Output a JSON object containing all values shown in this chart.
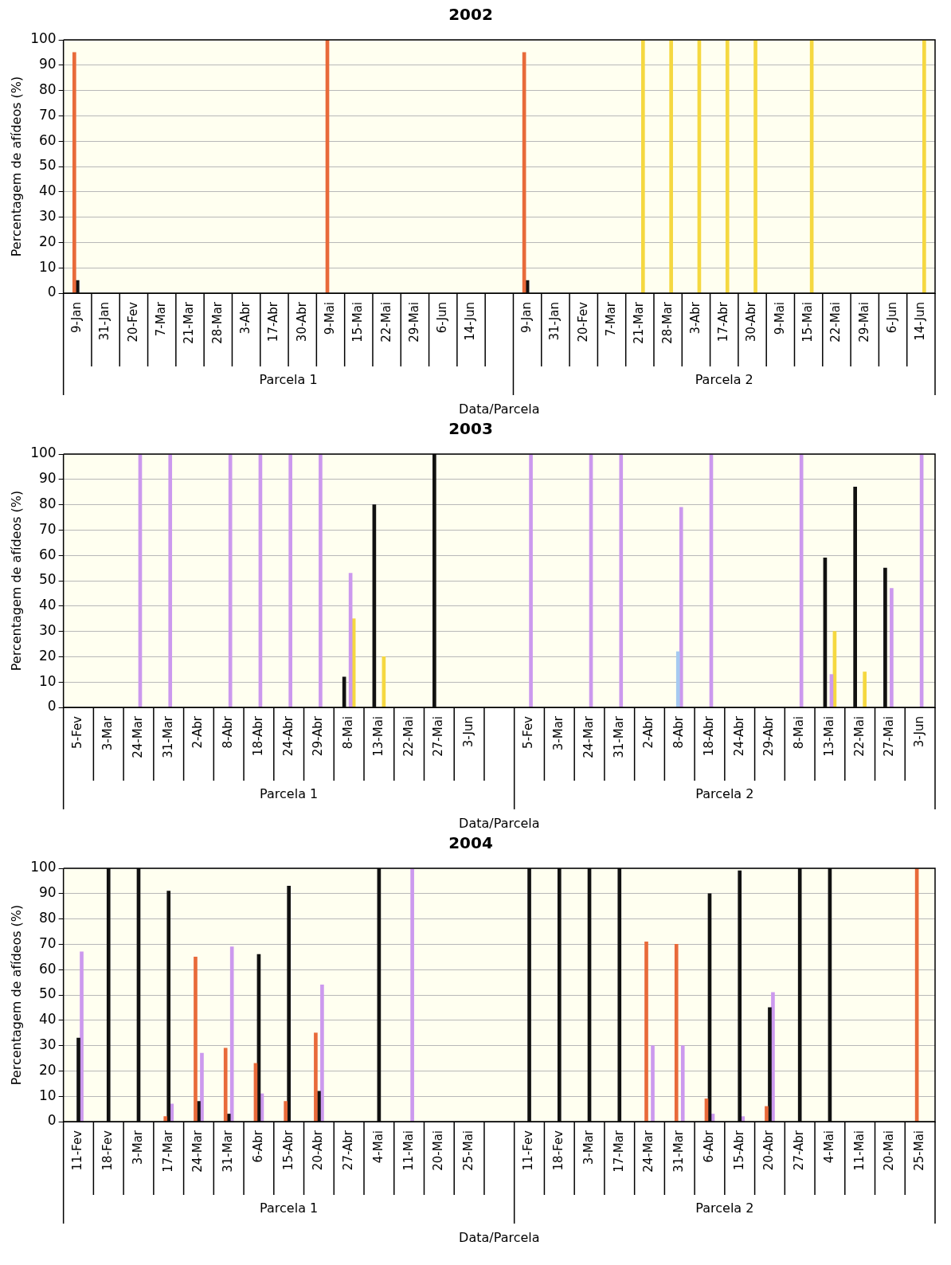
{
  "chart_data": [
    {
      "type": "bar",
      "title": "2002",
      "xlabel": "Data/Parcela",
      "ylabel": "Percentagem de afídeos (%)",
      "annotations": [
        "Parcela 1",
        "Parcela 2"
      ],
      "ylim": [
        0,
        100
      ],
      "yticks": [
        0,
        10,
        20,
        30,
        40,
        50,
        60,
        70,
        80,
        90,
        100
      ],
      "grid": "y",
      "categories": [
        "9-Jan",
        "31-Jan",
        "20-Fev",
        "7-Mar",
        "21-Mar",
        "28-Mar",
        "3-Abr",
        "17-Abr",
        "30-Abr",
        "9-Mai",
        "15-Mai",
        "22-Mai",
        "29-Mai",
        "6-Jun",
        "14-Jun",
        null,
        "9-Jan",
        "31-Jan",
        "20-Fev",
        "7-Mar",
        "21-Mar",
        "28-Mar",
        "3-Abr",
        "17-Abr",
        "30-Abr",
        "9-Mai",
        "15-Mai",
        "22-Mai",
        "29-Mai",
        "6-Jun",
        "14-Jun"
      ],
      "series": [
        {
          "color": "#e86a3a",
          "values": [
            95,
            null,
            null,
            null,
            null,
            null,
            null,
            null,
            null,
            100,
            null,
            null,
            null,
            null,
            null,
            null,
            95,
            null,
            null,
            null,
            null,
            null,
            null,
            null,
            null,
            null,
            null,
            null,
            null,
            null,
            null
          ]
        },
        {
          "color": "#111111",
          "values": [
            5,
            null,
            null,
            null,
            null,
            null,
            null,
            null,
            null,
            null,
            null,
            null,
            null,
            null,
            null,
            null,
            5,
            null,
            null,
            null,
            null,
            null,
            null,
            null,
            null,
            null,
            null,
            null,
            null,
            null,
            null
          ]
        },
        {
          "color": "#f5d840",
          "values": [
            null,
            null,
            null,
            null,
            null,
            null,
            null,
            null,
            null,
            null,
            null,
            null,
            null,
            null,
            null,
            null,
            null,
            null,
            null,
            null,
            100,
            100,
            100,
            100,
            100,
            null,
            100,
            null,
            null,
            null,
            100
          ]
        }
      ]
    },
    {
      "type": "bar",
      "title": "2003",
      "xlabel": "Data/Parcela",
      "ylabel": "Percentagem de afídeos (%)",
      "annotations": [
        "Parcela 1",
        "Parcela 2"
      ],
      "ylim": [
        0,
        100
      ],
      "yticks": [
        0,
        10,
        20,
        30,
        40,
        50,
        60,
        70,
        80,
        90,
        100
      ],
      "grid": "y",
      "categories": [
        "5-Fev",
        "3-Mar",
        "24-Mar",
        "31-Mar",
        "2-Abr",
        "8-Abr",
        "18-Abr",
        "24-Abr",
        "29-Abr",
        "8-Mai",
        "13-Mai",
        "22-Mai",
        "27-Mai",
        "3-Jun",
        null,
        "5-Fev",
        "3-Mar",
        "24-Mar",
        "31-Mar",
        "2-Abr",
        "8-Abr",
        "18-Abr",
        "24-Abr",
        "29-Abr",
        "8-Mai",
        "13-Mai",
        "22-Mai",
        "27-Mai",
        "3-Jun"
      ],
      "series": [
        {
          "color": "#111111",
          "values": [
            null,
            null,
            null,
            null,
            null,
            null,
            null,
            null,
            null,
            12,
            80,
            null,
            100,
            null,
            null,
            null,
            null,
            null,
            null,
            null,
            null,
            null,
            null,
            null,
            null,
            59,
            87,
            55,
            null
          ]
        },
        {
          "color": "#a6caf0",
          "values": [
            null,
            null,
            null,
            null,
            null,
            null,
            null,
            null,
            null,
            null,
            null,
            null,
            null,
            null,
            null,
            null,
            null,
            null,
            null,
            null,
            22,
            null,
            null,
            null,
            null,
            null,
            null,
            null,
            null
          ]
        },
        {
          "color": "#cc99ee",
          "values": [
            null,
            null,
            100,
            100,
            null,
            100,
            100,
            100,
            100,
            53,
            null,
            null,
            null,
            null,
            null,
            100,
            null,
            100,
            100,
            null,
            79,
            100,
            null,
            null,
            100,
            13,
            null,
            47,
            100
          ]
        },
        {
          "color": "#f5d840",
          "values": [
            null,
            null,
            null,
            null,
            null,
            null,
            null,
            null,
            null,
            35,
            20,
            null,
            null,
            null,
            null,
            null,
            null,
            null,
            null,
            null,
            null,
            null,
            null,
            null,
            null,
            30,
            14,
            null,
            null
          ]
        }
      ]
    },
    {
      "type": "bar",
      "title": "2004",
      "xlabel": "Data/Parcela",
      "ylabel": "Percentagem de afídeos (%)",
      "annotations": [
        "Parcela 1",
        "Parcela 2"
      ],
      "ylim": [
        0,
        100
      ],
      "yticks": [
        0,
        10,
        20,
        30,
        40,
        50,
        60,
        70,
        80,
        90,
        100
      ],
      "grid": "y",
      "categories": [
        "11-Fev",
        "18-Fev",
        "3-Mar",
        "17-Mar",
        "24-Mar",
        "31-Mar",
        "6-Abr",
        "15-Abr",
        "20-Abr",
        "27-Abr",
        "4-Mai",
        "11-Mai",
        "20-Mai",
        "25-Mai",
        null,
        "11-Fev",
        "18-Fev",
        "3-Mar",
        "17-Mar",
        "24-Mar",
        "31-Mar",
        "6-Abr",
        "15-Abr",
        "20-Abr",
        "27-Abr",
        "4-Mai",
        "11-Mai",
        "20-Mai",
        "25-Mai"
      ],
      "series": [
        {
          "color": "#e86a3a",
          "values": [
            null,
            null,
            null,
            2,
            65,
            29,
            23,
            8,
            35,
            null,
            null,
            null,
            null,
            null,
            null,
            null,
            null,
            null,
            null,
            71,
            70,
            9,
            null,
            6,
            null,
            null,
            null,
            null,
            100
          ]
        },
        {
          "color": "#111111",
          "values": [
            33,
            100,
            100,
            91,
            8,
            3,
            66,
            93,
            12,
            null,
            100,
            null,
            null,
            null,
            null,
            100,
            100,
            100,
            100,
            null,
            null,
            90,
            99,
            45,
            100,
            100,
            null,
            null,
            null
          ]
        },
        {
          "color": "#cc99ee",
          "values": [
            67,
            null,
            null,
            7,
            27,
            69,
            11,
            null,
            54,
            null,
            null,
            100,
            null,
            null,
            null,
            null,
            null,
            null,
            null,
            30,
            30,
            3,
            2,
            51,
            null,
            null,
            null,
            null,
            null
          ]
        }
      ]
    }
  ]
}
